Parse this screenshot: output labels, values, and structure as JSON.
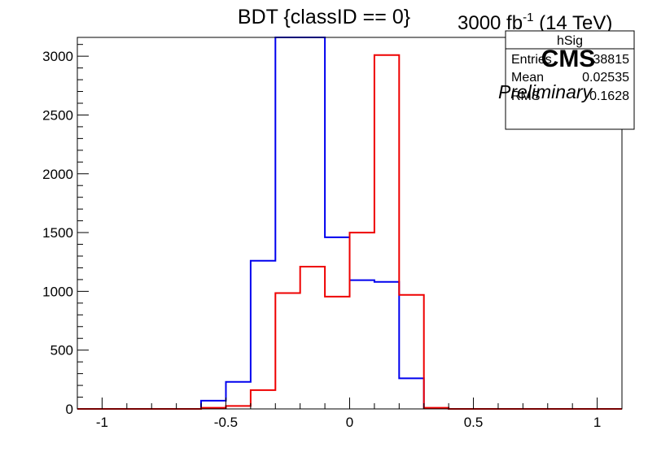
{
  "chart_data": {
    "type": "histogram",
    "title": "BDT {classID == 0}",
    "xlim": [
      -1.1,
      1.1
    ],
    "ylim": [
      0,
      3160
    ],
    "xticks": [
      -1,
      -0.5,
      0,
      0.5,
      1
    ],
    "xtick_labels": [
      "-1",
      "-0.5",
      "0",
      "0.5",
      "1"
    ],
    "yticks": [
      0,
      500,
      1000,
      1500,
      2000,
      2500,
      3000
    ],
    "ytick_labels": [
      "0",
      "500",
      "1000",
      "1500",
      "2000",
      "2500",
      "3000"
    ],
    "bin_edges": [
      -1.0,
      -0.9,
      -0.8,
      -0.7,
      -0.6,
      -0.5,
      -0.4,
      -0.3,
      -0.2,
      -0.1,
      0.0,
      0.1,
      0.2,
      0.3,
      0.4,
      0.5,
      0.6,
      0.7,
      0.8,
      0.9,
      1.0
    ],
    "series": [
      {
        "color": "#0000ee",
        "values": [
          0,
          0,
          0,
          0,
          70,
          230,
          1260,
          3400,
          3400,
          1460,
          1095,
          1080,
          260,
          5,
          0,
          0,
          0,
          0,
          0,
          0
        ]
      },
      {
        "color": "#ee0000",
        "values": [
          0,
          0,
          0,
          0,
          10,
          25,
          160,
          985,
          1210,
          955,
          1500,
          3010,
          970,
          10,
          0,
          0,
          0,
          0,
          0,
          0
        ]
      }
    ],
    "grid": false
  },
  "header": {
    "lumi_value": "3000 fb",
    "lumi_exp": "-1",
    "lumi_energy": " (14 TeV)"
  },
  "stats_box": {
    "name": "hSig",
    "rows": [
      {
        "label": "Entries",
        "value": "38815"
      },
      {
        "label": "Mean",
        "value": "0.02535"
      },
      {
        "label": "RMS",
        "value": "0.1628"
      }
    ]
  },
  "labels": {
    "cms": "CMS",
    "preliminary": "Preliminary"
  }
}
